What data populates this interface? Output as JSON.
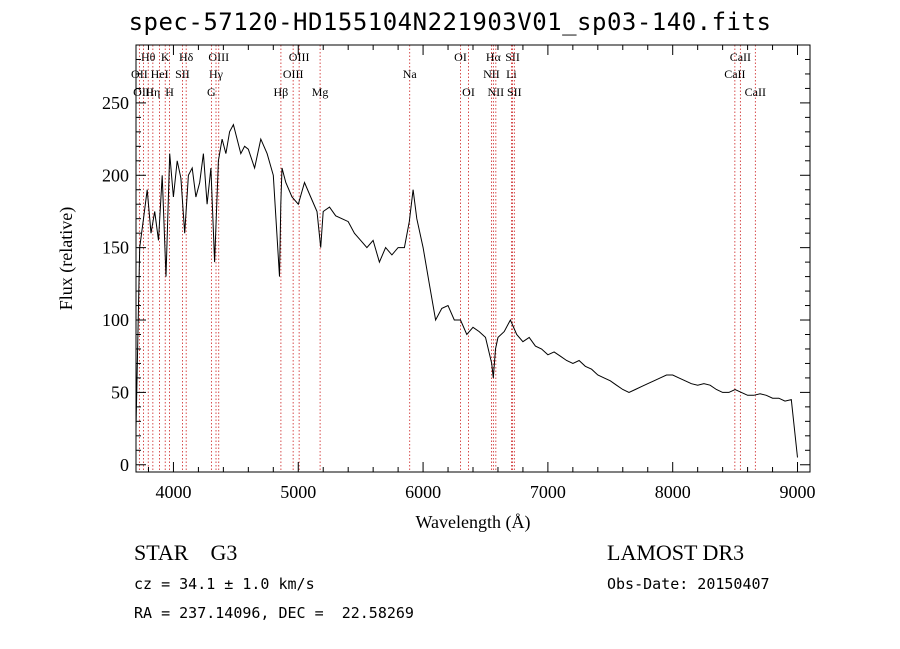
{
  "chart_data": {
    "type": "line",
    "title": "spec-57120-HD155104N221903V01_sp03-140.fits",
    "xlabel": "Wavelength (Å)",
    "ylabel": "Flux (relative)",
    "xlim": [
      3700,
      9100
    ],
    "ylim": [
      -5,
      290
    ],
    "xticks": [
      "4000",
      "5000",
      "6000",
      "7000",
      "8000",
      "9000"
    ],
    "yticks": [
      "0",
      "50",
      "100",
      "150",
      "200",
      "250"
    ],
    "grid": false,
    "series": [
      {
        "color": "#000000",
        "x": [
          3700,
          3730,
          3760,
          3790,
          3820,
          3850,
          3880,
          3910,
          3940,
          3970,
          4000,
          4030,
          4060,
          4090,
          4120,
          4150,
          4180,
          4210,
          4240,
          4270,
          4300,
          4330,
          4360,
          4390,
          4420,
          4450,
          4480,
          4510,
          4540,
          4570,
          4600,
          4650,
          4700,
          4750,
          4800,
          4850,
          4860,
          4870,
          4900,
          4950,
          5000,
          5050,
          5100,
          5150,
          5180,
          5200,
          5250,
          5300,
          5350,
          5400,
          5450,
          5500,
          5550,
          5600,
          5650,
          5700,
          5750,
          5800,
          5850,
          5890,
          5920,
          5950,
          6000,
          6050,
          6100,
          6150,
          6200,
          6250,
          6300,
          6350,
          6400,
          6450,
          6500,
          6550,
          6563,
          6580,
          6600,
          6650,
          6700,
          6750,
          6800,
          6850,
          6900,
          6950,
          7000,
          7050,
          7100,
          7150,
          7200,
          7250,
          7300,
          7350,
          7400,
          7450,
          7500,
          7550,
          7600,
          7650,
          7700,
          7750,
          7800,
          7850,
          7900,
          7950,
          8000,
          8050,
          8100,
          8150,
          8200,
          8250,
          8300,
          8350,
          8400,
          8450,
          8500,
          8550,
          8600,
          8650,
          8700,
          8750,
          8800,
          8850,
          8900,
          8950,
          9000
        ],
        "y": [
          25,
          150,
          170,
          190,
          160,
          175,
          155,
          200,
          130,
          215,
          185,
          210,
          198,
          160,
          200,
          205,
          185,
          195,
          215,
          180,
          205,
          140,
          210,
          225,
          215,
          230,
          235,
          225,
          215,
          220,
          218,
          205,
          225,
          215,
          200,
          130,
          180,
          205,
          195,
          185,
          180,
          195,
          185,
          175,
          150,
          175,
          178,
          172,
          170,
          168,
          160,
          155,
          150,
          155,
          140,
          150,
          145,
          150,
          150,
          168,
          190,
          170,
          150,
          125,
          100,
          108,
          110,
          100,
          100,
          90,
          95,
          92,
          88,
          70,
          60,
          80,
          88,
          92,
          100,
          90,
          85,
          88,
          82,
          80,
          76,
          78,
          75,
          72,
          70,
          72,
          68,
          66,
          62,
          60,
          58,
          55,
          52,
          50,
          52,
          54,
          56,
          58,
          60,
          62,
          62,
          60,
          58,
          56,
          55,
          56,
          55,
          52,
          50,
          50,
          52,
          50,
          48,
          48,
          49,
          48,
          46,
          46,
          44,
          45,
          5
        ]
      }
    ],
    "line_markers": [
      {
        "label": "Hθ",
        "x": 3798,
        "row": 0
      },
      {
        "label": "OII",
        "x": 3727,
        "row": 1
      },
      {
        "label": "OIII",
        "x": 3760,
        "row": 2
      },
      {
        "label": "Hη",
        "x": 3835,
        "row": 2
      },
      {
        "label": "K",
        "x": 3934,
        "row": 0
      },
      {
        "label": "HeI",
        "x": 3889,
        "row": 1
      },
      {
        "label": "H",
        "x": 3969,
        "row": 2
      },
      {
        "label": "SII",
        "x": 4072,
        "row": 1
      },
      {
        "label": "Hδ",
        "x": 4102,
        "row": 0
      },
      {
        "label": "OIII",
        "x": 4363,
        "row": 0
      },
      {
        "label": "Hγ",
        "x": 4341,
        "row": 1
      },
      {
        "label": "G",
        "x": 4304,
        "row": 2
      },
      {
        "label": "Hβ",
        "x": 4861,
        "row": 2
      },
      {
        "label": "OIII",
        "x": 5007,
        "row": 0
      },
      {
        "label": "OIII",
        "x": 4959,
        "row": 1
      },
      {
        "label": "Mg",
        "x": 5175,
        "row": 2
      },
      {
        "label": "Na",
        "x": 5893,
        "row": 1
      },
      {
        "label": "OI",
        "x": 6300,
        "row": 0
      },
      {
        "label": "OI",
        "x": 6364,
        "row": 2
      },
      {
        "label": "Hα",
        "x": 6563,
        "row": 0
      },
      {
        "label": "NII",
        "x": 6548,
        "row": 1
      },
      {
        "label": "NII",
        "x": 6583,
        "row": 2
      },
      {
        "label": "SII",
        "x": 6717,
        "row": 0
      },
      {
        "label": "Li",
        "x": 6708,
        "row": 1
      },
      {
        "label": "SII",
        "x": 6731,
        "row": 2
      },
      {
        "label": "CaII",
        "x": 8542,
        "row": 0
      },
      {
        "label": "CaII",
        "x": 8498,
        "row": 1
      },
      {
        "label": "CaII",
        "x": 8662,
        "row": 2
      }
    ]
  },
  "info": {
    "class_line": "STAR    G3",
    "survey": "LAMOST DR3",
    "cz": "cz = 34.1 ± 1.0 km/s",
    "obs_date": "Obs-Date: 20150407",
    "coords": "RA = 237.14096, DEC =  22.58269"
  }
}
